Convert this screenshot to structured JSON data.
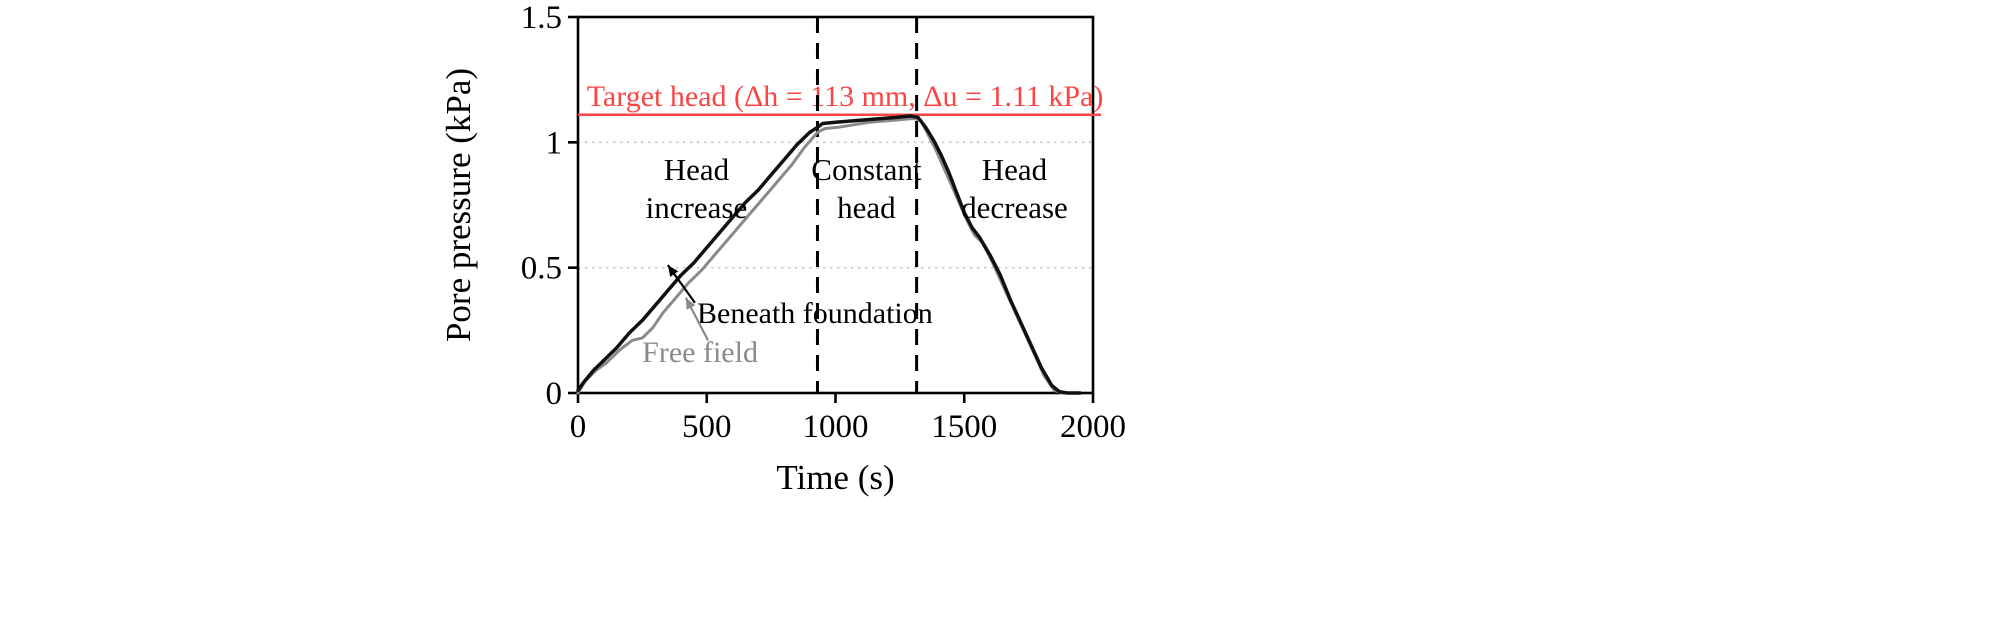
{
  "figure": {
    "background": "#ffffff"
  },
  "chart_data": {
    "type": "line",
    "title": "",
    "xlabel": "Time (s)",
    "ylabel": "Pore pressure (kPa)",
    "xlim": [
      0,
      2000
    ],
    "ylim": [
      0,
      1.5
    ],
    "xticks": [
      0,
      500,
      1000,
      1500,
      2000
    ],
    "xtick_labels": [
      "0",
      "500",
      "1000",
      "1500",
      "2000"
    ],
    "yticks": [
      0,
      0.5,
      1,
      1.5
    ],
    "ytick_labels": [
      "0",
      "0.5",
      "1",
      "1.5"
    ],
    "grid_y": [
      0.5,
      1.0
    ],
    "grid_color": "#c9c9c9",
    "axis_color": "#000000",
    "legend_position": "none",
    "target_line": {
      "value": 1.11,
      "color": "#fb4545",
      "label": "Target head (Δh = 113 mm, Δu = 1.11 kPa)",
      "label_x": 1037,
      "label_y": 1.145
    },
    "phase_dividers": [
      930,
      1315
    ],
    "divider_color": "#000000",
    "phase_labels": [
      {
        "lines": [
          "Head",
          "increase"
        ],
        "x": 460,
        "y": 0.85
      },
      {
        "lines": [
          "Constant",
          "head"
        ],
        "x": 1120,
        "y": 0.85
      },
      {
        "lines": [
          "Head",
          "decrease"
        ],
        "x": 1695,
        "y": 0.85
      }
    ],
    "series": [
      {
        "name": "Free field",
        "color": "#8a8a8a",
        "width": 3,
        "x": [
          0,
          30,
          70,
          110,
          160,
          210,
          250,
          290,
          330,
          380,
          430,
          480,
          530,
          580,
          630,
          680,
          730,
          780,
          830,
          880,
          930,
          960,
          1010,
          1070,
          1130,
          1190,
          1250,
          1300,
          1330,
          1360,
          1390,
          1420,
          1450,
          1480,
          1510,
          1540,
          1570,
          1610,
          1650,
          1690,
          1730,
          1770,
          1810,
          1850,
          1880,
          1950
        ],
        "y": [
          0.0,
          0.05,
          0.09,
          0.12,
          0.17,
          0.21,
          0.22,
          0.26,
          0.32,
          0.38,
          0.44,
          0.49,
          0.55,
          0.61,
          0.67,
          0.73,
          0.79,
          0.85,
          0.91,
          0.98,
          1.04,
          1.055,
          1.06,
          1.07,
          1.08,
          1.085,
          1.09,
          1.095,
          1.09,
          1.03,
          0.97,
          0.9,
          0.83,
          0.76,
          0.69,
          0.63,
          0.6,
          0.52,
          0.43,
          0.34,
          0.25,
          0.16,
          0.07,
          0.01,
          0.0,
          0.0
        ]
      },
      {
        "name": "Beneath foundation",
        "color": "#111111",
        "width": 3.5,
        "x": [
          0,
          20,
          60,
          100,
          150,
          200,
          250,
          300,
          350,
          400,
          450,
          500,
          550,
          600,
          650,
          700,
          750,
          800,
          850,
          900,
          930,
          950,
          1000,
          1060,
          1120,
          1180,
          1240,
          1290,
          1320,
          1350,
          1380,
          1410,
          1440,
          1470,
          1500,
          1530,
          1560,
          1600,
          1640,
          1680,
          1720,
          1760,
          1800,
          1840,
          1870,
          1900,
          1950
        ],
        "y": [
          0.01,
          0.04,
          0.09,
          0.13,
          0.18,
          0.24,
          0.29,
          0.35,
          0.41,
          0.47,
          0.52,
          0.58,
          0.64,
          0.7,
          0.76,
          0.81,
          0.87,
          0.93,
          0.99,
          1.04,
          1.06,
          1.075,
          1.08,
          1.085,
          1.09,
          1.095,
          1.1,
          1.105,
          1.1,
          1.06,
          1.01,
          0.95,
          0.88,
          0.8,
          0.72,
          0.66,
          0.62,
          0.55,
          0.47,
          0.37,
          0.28,
          0.19,
          0.1,
          0.03,
          0.005,
          0.0,
          0.0
        ]
      }
    ],
    "annotations": [
      {
        "text": "Beneath foundation",
        "color": "#000000",
        "x": 920,
        "y": 0.28,
        "arrow_from": [
          454,
          0.36
        ],
        "arrow_to": [
          349,
          0.51
        ]
      },
      {
        "text": "Free field",
        "color": "#8a8a8a",
        "x": 474,
        "y": 0.124,
        "arrow_from": [
          505,
          0.21
        ],
        "arrow_to": [
          419,
          0.38
        ]
      }
    ]
  }
}
